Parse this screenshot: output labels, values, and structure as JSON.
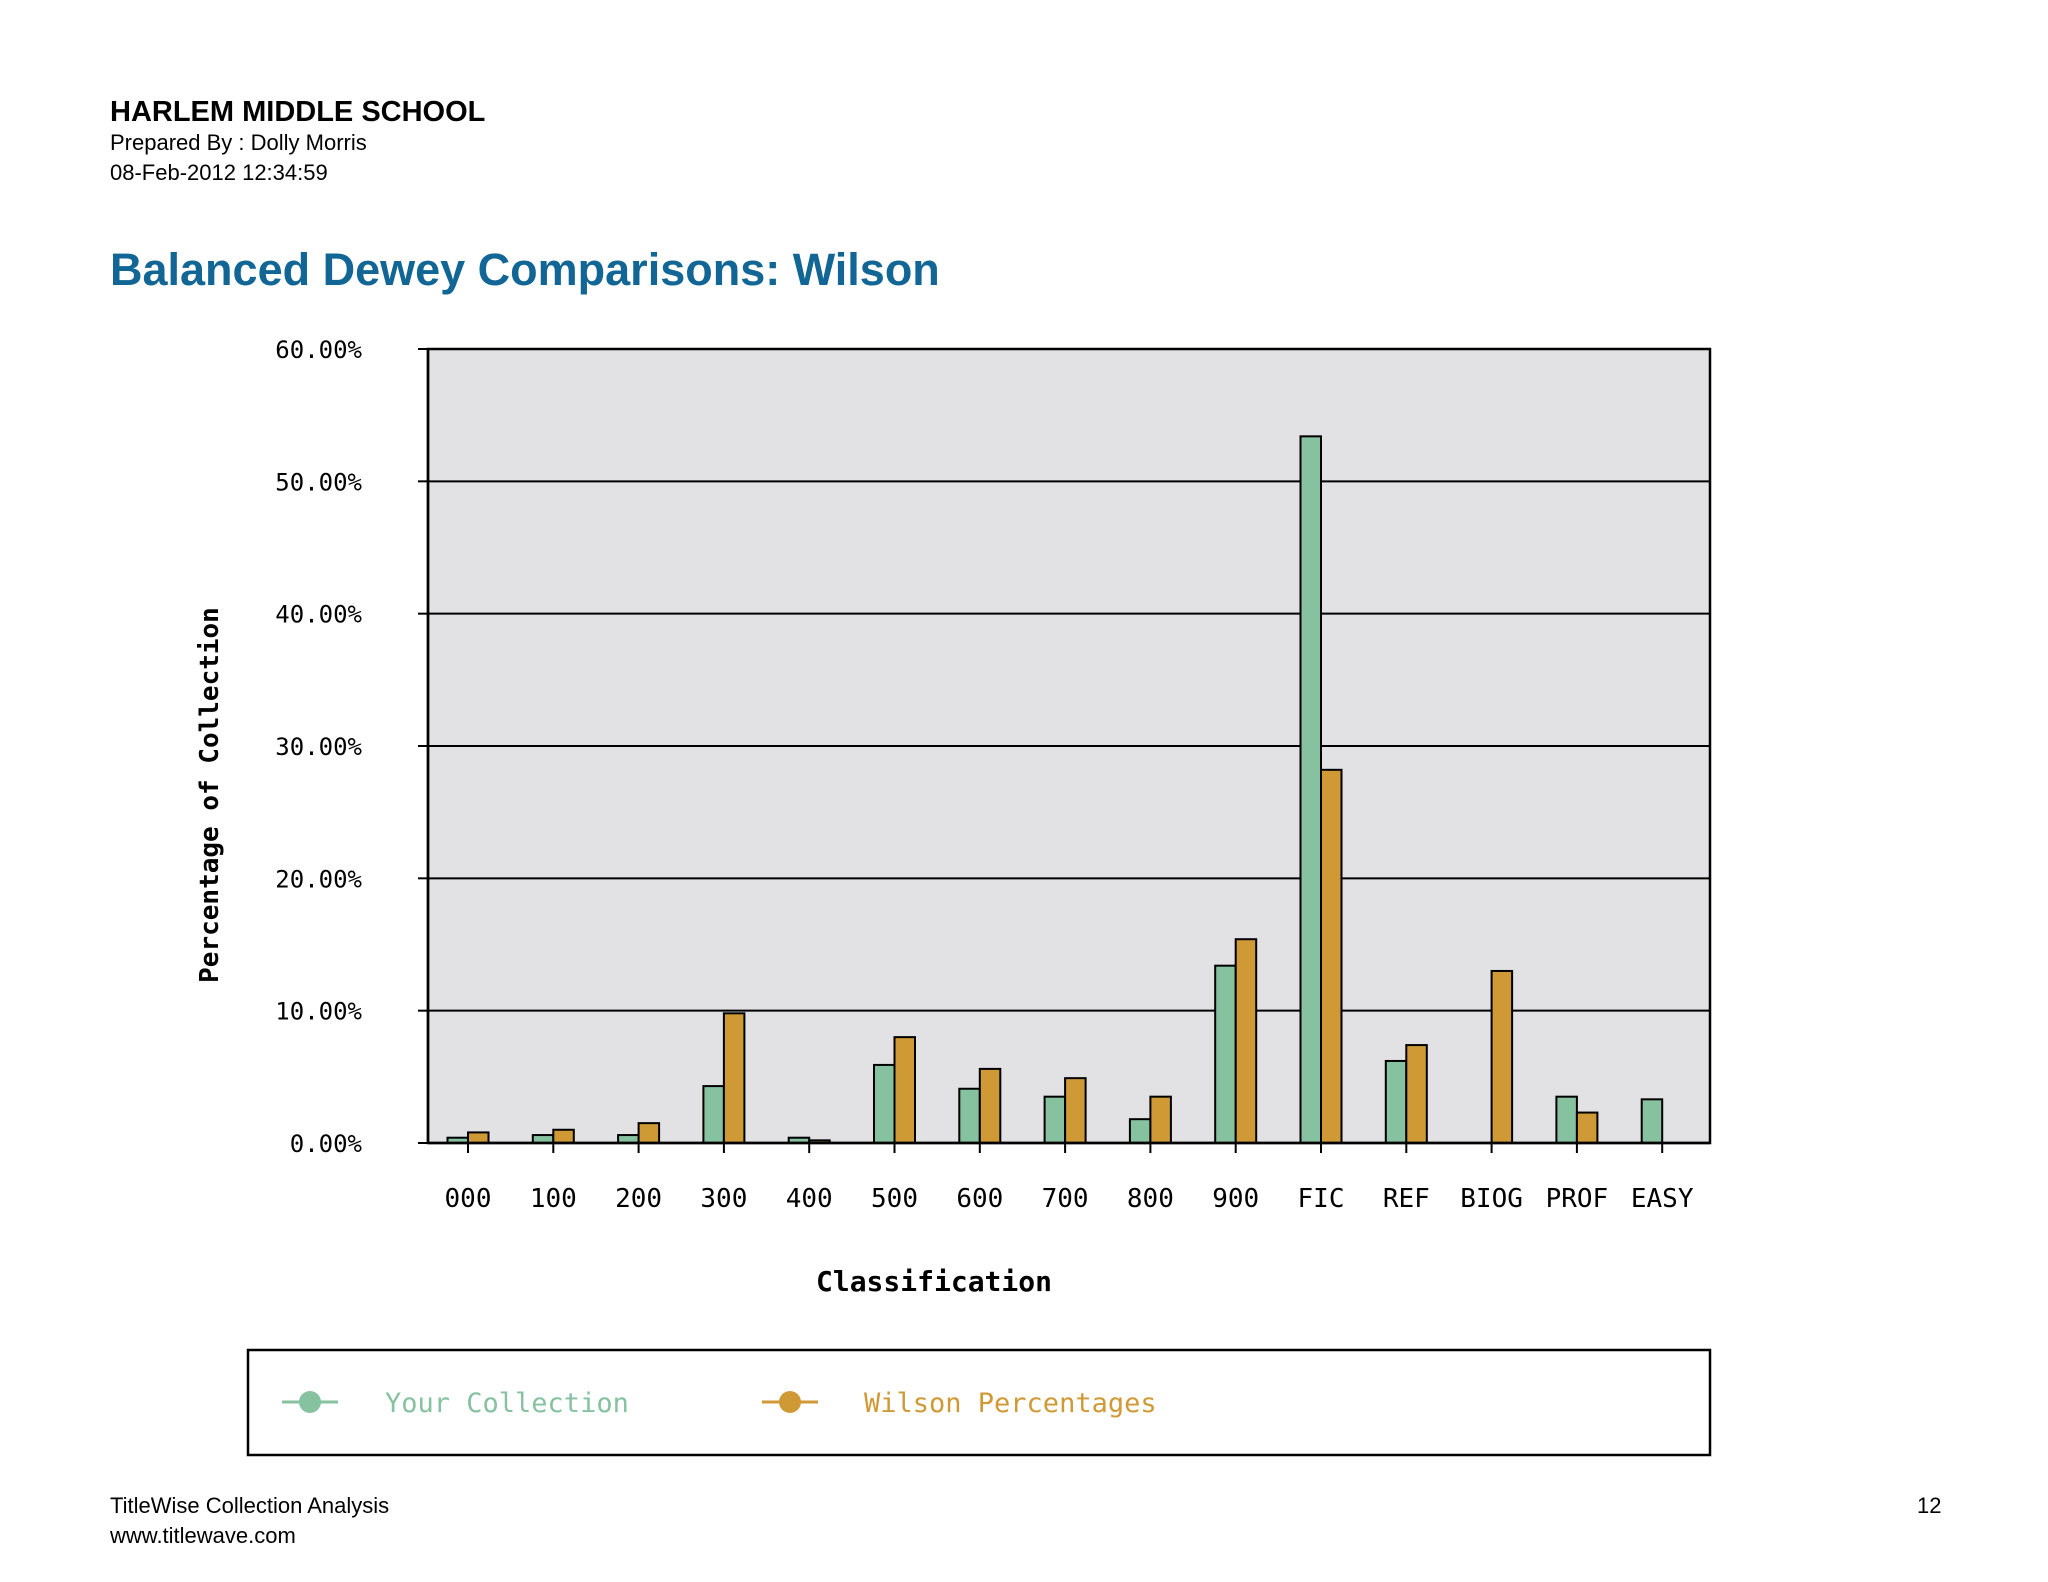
{
  "header": {
    "school": "HARLEM MIDDLE SCHOOL",
    "prepared_by": "Prepared By : Dolly Morris",
    "timestamp": "08-Feb-2012 12:34:59"
  },
  "report_title": "Balanced Dewey Comparisons: Wilson",
  "colors": {
    "your_collection": "#86c1a0",
    "wilson": "#cf9a36",
    "plot_bg": "#e2e1e4",
    "title": "#126695"
  },
  "chart_data": {
    "type": "bar",
    "title": "",
    "xlabel": "Classification",
    "ylabel": "Percentage of Collection",
    "ylim": [
      0,
      60
    ],
    "y_ticks": [
      "0.00%",
      "10.00%",
      "20.00%",
      "30.00%",
      "40.00%",
      "50.00%",
      "60.00%"
    ],
    "grid": true,
    "legend_placement": "bottom",
    "categories": [
      "000",
      "100",
      "200",
      "300",
      "400",
      "500",
      "600",
      "700",
      "800",
      "900",
      "FIC",
      "REF",
      "BIOG",
      "PROF",
      "EASY"
    ],
    "series": [
      {
        "name": "Your Collection",
        "color": "#86c1a0",
        "values": [
          0.4,
          0.6,
          0.6,
          4.3,
          0.4,
          5.9,
          4.1,
          3.5,
          1.8,
          13.4,
          53.4,
          6.2,
          0,
          3.5,
          3.3
        ]
      },
      {
        "name": "Wilson Percentages",
        "color": "#cf9a36",
        "values": [
          0.8,
          1.0,
          1.5,
          9.8,
          0.2,
          8.0,
          5.6,
          4.9,
          3.5,
          15.4,
          28.2,
          7.4,
          13.0,
          2.3,
          0
        ]
      }
    ]
  },
  "footer": {
    "app_name": "TitleWise Collection Analysis",
    "url": "www.titlewave.com",
    "page_number": "12"
  }
}
